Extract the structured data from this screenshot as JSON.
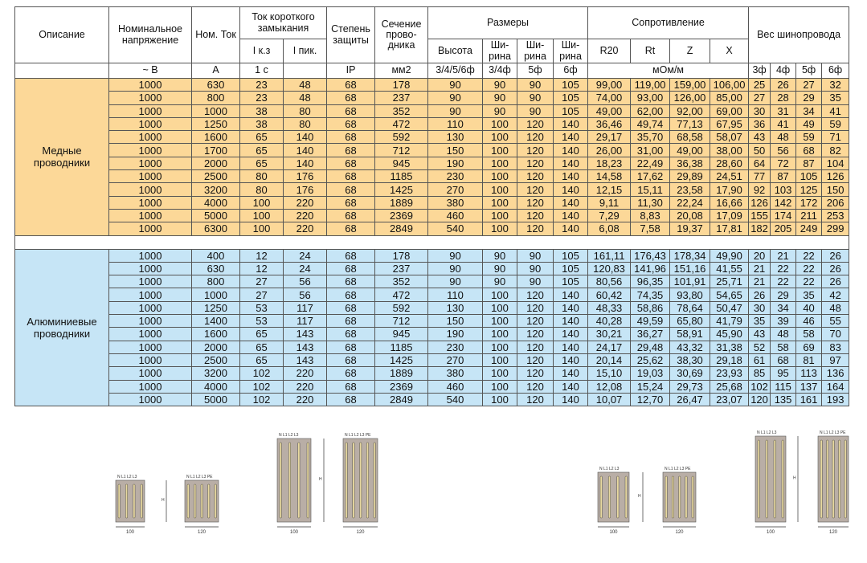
{
  "header": {
    "description": "Описание",
    "voltage": "Номинальное напряжение",
    "current": "Ном. Ток",
    "short_circuit": "Ток короткого замыкания",
    "protection": "Степень защиты",
    "section": "Сечение прово-дника",
    "dimensions": "Размеры",
    "resistance": "Сопротивление",
    "weight": "Вес шинопровода",
    "sub": [
      "I к.з",
      "I пик.",
      "Высота",
      "Ши-рина",
      "Ши-рина",
      "Ши-рина",
      "R20",
      "Rt",
      "Z",
      "X"
    ]
  },
  "units": {
    "voltage": "~ В",
    "current": "А",
    "ikz": "1 с",
    "ip": "IP",
    "section": "мм2",
    "height": "3/4/5/6ф",
    "w34": "3/4ф",
    "w5": "5ф",
    "w6": "6ф",
    "resistance": "мОм/м",
    "weight": [
      "3ф",
      "4ф",
      "5ф",
      "6ф"
    ]
  },
  "groups": [
    {
      "label": "Медные проводники",
      "rows": [
        [
          "1000",
          "630",
          "23",
          "48",
          "68",
          "178",
          "90",
          "90",
          "90",
          "105",
          "99,00",
          "119,00",
          "159,00",
          "106,00",
          "25",
          "26",
          "27",
          "32"
        ],
        [
          "1000",
          "800",
          "23",
          "48",
          "68",
          "237",
          "90",
          "90",
          "90",
          "105",
          "74,00",
          "93,00",
          "126,00",
          "85,00",
          "27",
          "28",
          "29",
          "35"
        ],
        [
          "1000",
          "1000",
          "38",
          "80",
          "68",
          "352",
          "90",
          "90",
          "90",
          "105",
          "49,00",
          "62,00",
          "92,00",
          "69,00",
          "30",
          "31",
          "34",
          "41"
        ],
        [
          "1000",
          "1250",
          "38",
          "80",
          "68",
          "472",
          "110",
          "100",
          "120",
          "140",
          "36,46",
          "49,74",
          "77,13",
          "67,95",
          "36",
          "41",
          "49",
          "59"
        ],
        [
          "1000",
          "1600",
          "65",
          "140",
          "68",
          "592",
          "130",
          "100",
          "120",
          "140",
          "29,17",
          "35,70",
          "68,58",
          "58,07",
          "43",
          "48",
          "59",
          "71"
        ],
        [
          "1000",
          "1700",
          "65",
          "140",
          "68",
          "712",
          "150",
          "100",
          "120",
          "140",
          "26,00",
          "31,00",
          "49,00",
          "38,00",
          "50",
          "56",
          "68",
          "82"
        ],
        [
          "1000",
          "2000",
          "65",
          "140",
          "68",
          "945",
          "190",
          "100",
          "120",
          "140",
          "18,23",
          "22,49",
          "36,38",
          "28,60",
          "64",
          "72",
          "87",
          "104"
        ],
        [
          "1000",
          "2500",
          "80",
          "176",
          "68",
          "1185",
          "230",
          "100",
          "120",
          "140",
          "14,58",
          "17,62",
          "29,89",
          "24,51",
          "77",
          "87",
          "105",
          "126"
        ],
        [
          "1000",
          "3200",
          "80",
          "176",
          "68",
          "1425",
          "270",
          "100",
          "120",
          "140",
          "12,15",
          "15,11",
          "23,58",
          "17,90",
          "92",
          "103",
          "125",
          "150"
        ],
        [
          "1000",
          "4000",
          "100",
          "220",
          "68",
          "1889",
          "380",
          "100",
          "120",
          "140",
          "9,11",
          "11,30",
          "22,24",
          "16,66",
          "126",
          "142",
          "172",
          "206"
        ],
        [
          "1000",
          "5000",
          "100",
          "220",
          "68",
          "2369",
          "460",
          "100",
          "120",
          "140",
          "7,29",
          "8,83",
          "20,08",
          "17,09",
          "155",
          "174",
          "211",
          "253"
        ],
        [
          "1000",
          "6300",
          "100",
          "220",
          "68",
          "2849",
          "540",
          "100",
          "120",
          "140",
          "6,08",
          "7,58",
          "19,37",
          "17,81",
          "182",
          "205",
          "249",
          "299"
        ]
      ]
    },
    {
      "label": "Алюминиевые проводники",
      "rows": [
        [
          "1000",
          "400",
          "12",
          "24",
          "68",
          "178",
          "90",
          "90",
          "90",
          "105",
          "161,11",
          "176,43",
          "178,34",
          "49,90",
          "20",
          "21",
          "22",
          "26"
        ],
        [
          "1000",
          "630",
          "12",
          "24",
          "68",
          "237",
          "90",
          "90",
          "90",
          "105",
          "120,83",
          "141,96",
          "151,16",
          "41,55",
          "21",
          "22",
          "22",
          "26"
        ],
        [
          "1000",
          "800",
          "27",
          "56",
          "68",
          "352",
          "90",
          "90",
          "90",
          "105",
          "80,56",
          "96,35",
          "101,91",
          "25,71",
          "21",
          "22",
          "22",
          "26"
        ],
        [
          "1000",
          "1000",
          "27",
          "56",
          "68",
          "472",
          "110",
          "100",
          "120",
          "140",
          "60,42",
          "74,35",
          "93,80",
          "54,65",
          "26",
          "29",
          "35",
          "42"
        ],
        [
          "1000",
          "1250",
          "53",
          "117",
          "68",
          "592",
          "130",
          "100",
          "120",
          "140",
          "48,33",
          "58,86",
          "78,64",
          "50,47",
          "30",
          "34",
          "40",
          "48"
        ],
        [
          "1000",
          "1400",
          "53",
          "117",
          "68",
          "712",
          "150",
          "100",
          "120",
          "140",
          "40,28",
          "49,59",
          "65,80",
          "41,79",
          "35",
          "39",
          "46",
          "55"
        ],
        [
          "1000",
          "1600",
          "65",
          "143",
          "68",
          "945",
          "190",
          "100",
          "120",
          "140",
          "30,21",
          "36,27",
          "58,91",
          "45,90",
          "43",
          "48",
          "58",
          "70"
        ],
        [
          "1000",
          "2000",
          "65",
          "143",
          "68",
          "1185",
          "230",
          "100",
          "120",
          "140",
          "24,17",
          "29,48",
          "43,32",
          "31,38",
          "52",
          "58",
          "69",
          "83"
        ],
        [
          "1000",
          "2500",
          "65",
          "143",
          "68",
          "1425",
          "270",
          "100",
          "120",
          "140",
          "20,14",
          "25,62",
          "38,30",
          "29,18",
          "61",
          "68",
          "81",
          "97"
        ],
        [
          "1000",
          "3200",
          "102",
          "220",
          "68",
          "1889",
          "380",
          "100",
          "120",
          "140",
          "15,10",
          "19,03",
          "30,69",
          "23,93",
          "85",
          "95",
          "113",
          "136"
        ],
        [
          "1000",
          "4000",
          "102",
          "220",
          "68",
          "2369",
          "460",
          "100",
          "120",
          "140",
          "12,08",
          "15,24",
          "29,73",
          "25,68",
          "102",
          "115",
          "137",
          "164"
        ],
        [
          "1000",
          "5000",
          "102",
          "220",
          "68",
          "2849",
          "540",
          "100",
          "120",
          "140",
          "10,07",
          "12,70",
          "26,47",
          "23,07",
          "120",
          "135",
          "161",
          "193"
        ]
      ]
    }
  ],
  "diagrams": [
    {
      "height": "H",
      "panels": [
        {
          "phases": "N L1 L2 L3",
          "width": "100"
        },
        {
          "phases": "N L1 L2 L3 PE",
          "width": "120"
        }
      ]
    },
    {
      "height": "H",
      "panels": [
        {
          "phases": "N L1 L2 L3",
          "width": "100"
        },
        {
          "phases": "N L1 L2 L3 PE",
          "width": "120"
        }
      ]
    },
    {
      "height": "H",
      "panels": [
        {
          "phases": "N L1 L2 L3",
          "width": "100"
        },
        {
          "phases": "N L1 L2 L3 PE",
          "width": "120"
        }
      ]
    },
    {
      "height": "H",
      "panels": [
        {
          "phases": "N L1 L2 L3",
          "width": "100"
        },
        {
          "phases": "N L1 L2 L3 PE",
          "width": "120"
        }
      ]
    }
  ]
}
